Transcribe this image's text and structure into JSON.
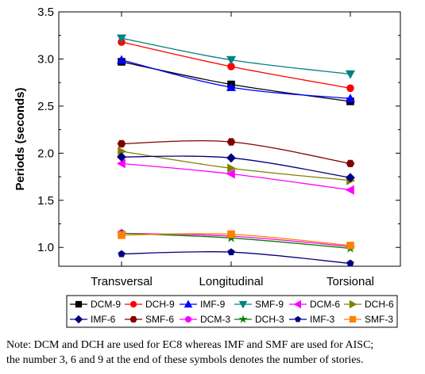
{
  "chart_data": {
    "type": "line",
    "title": "",
    "xlabel": "",
    "ylabel": "Periods (seconds)",
    "categories": [
      "Transversal",
      "Longitudinal",
      "Torsional"
    ],
    "ylim": [
      0.8,
      3.5
    ],
    "yticks": [
      "1.0",
      "1.5",
      "2.0",
      "2.5",
      "3.0",
      "3.5"
    ],
    "grid": false,
    "legend_position": "bottom",
    "series": [
      {
        "name": "DCM-9",
        "values": [
          2.97,
          2.73,
          2.55
        ],
        "color": "#000000",
        "marker": "square"
      },
      {
        "name": "DCH-9",
        "values": [
          3.18,
          2.92,
          2.69
        ],
        "color": "#ff0000",
        "marker": "circle"
      },
      {
        "name": "IMF-9",
        "values": [
          2.99,
          2.7,
          2.58
        ],
        "color": "#0000ff",
        "marker": "triangle-up"
      },
      {
        "name": "SMF-9",
        "values": [
          3.22,
          2.99,
          2.84
        ],
        "color": "#008080",
        "marker": "triangle-down"
      },
      {
        "name": "DCM-6",
        "values": [
          1.89,
          1.78,
          1.61
        ],
        "color": "#ff00ff",
        "marker": "triangle-left"
      },
      {
        "name": "DCH-6",
        "values": [
          2.02,
          1.84,
          1.71
        ],
        "color": "#808000",
        "marker": "triangle-right"
      },
      {
        "name": "IMF-6",
        "values": [
          1.96,
          1.95,
          1.74
        ],
        "color": "#000080",
        "marker": "diamond"
      },
      {
        "name": "SMF-6",
        "values": [
          2.1,
          2.12,
          1.89
        ],
        "color": "#800000",
        "marker": "hexagon"
      },
      {
        "name": "DCM-3",
        "values": [
          1.15,
          1.12,
          1.01
        ],
        "color": "#ff00ff",
        "marker": "circle"
      },
      {
        "name": "DCH-3",
        "values": [
          1.15,
          1.1,
          0.99
        ],
        "color": "#008000",
        "marker": "star"
      },
      {
        "name": "IMF-3",
        "values": [
          0.93,
          0.95,
          0.83
        ],
        "color": "#000080",
        "marker": "pentagon"
      },
      {
        "name": "SMF-3",
        "values": [
          1.13,
          1.14,
          1.02
        ],
        "color": "#ff8000",
        "marker": "square"
      }
    ]
  },
  "note": {
    "line1": "Note: DCM and DCH are used for EC8 whereas IMF and SMF are used for AISC;",
    "line2": "the number 3, 6 and 9 at the end of these symbols denotes the number of stories."
  }
}
